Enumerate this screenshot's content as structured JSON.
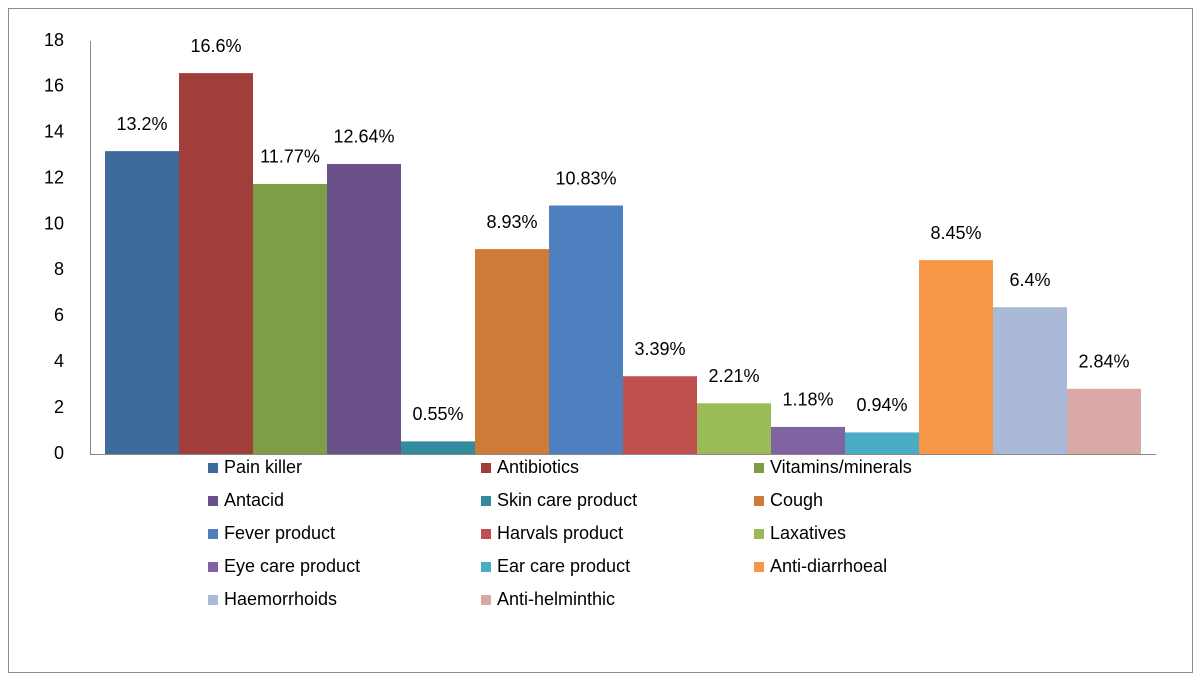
{
  "chart_data": {
    "type": "bar",
    "categories": [
      null
    ],
    "ylim": [
      0,
      18
    ],
    "yticks": [
      0,
      2,
      4,
      6,
      8,
      10,
      12,
      14,
      16,
      18
    ],
    "grid": false,
    "series": [
      {
        "name": "Pain killer",
        "color": "#3e6a9c",
        "values": [
          13.2
        ],
        "value_labels": [
          "13.2%"
        ]
      },
      {
        "name": "Antibiotics",
        "color": "#a03e3b",
        "values": [
          16.6
        ],
        "value_labels": [
          "16.6%"
        ]
      },
      {
        "name": "Vitamins/minerals",
        "color": "#7f9c47",
        "values": [
          11.77
        ],
        "value_labels": [
          "11.77%"
        ]
      },
      {
        "name": "Antacid",
        "color": "#6a5189",
        "values": [
          12.64
        ],
        "value_labels": [
          "12.64%"
        ]
      },
      {
        "name": "Skin care product",
        "color": "#348a9e",
        "values": [
          0.55
        ],
        "value_labels": [
          "0.55%"
        ]
      },
      {
        "name": "Cough",
        "color": "#cf7b37",
        "values": [
          8.93
        ],
        "value_labels": [
          "8.93%"
        ]
      },
      {
        "name": "Fever product",
        "color": "#4e80bf",
        "values": [
          10.83
        ],
        "value_labels": [
          "10.83%"
        ]
      },
      {
        "name": "Harvals product",
        "color": "#c0504d",
        "values": [
          3.39
        ],
        "value_labels": [
          "3.39%"
        ]
      },
      {
        "name": "Laxatives",
        "color": "#9bbb59",
        "values": [
          2.21
        ],
        "value_labels": [
          "2.21%"
        ]
      },
      {
        "name": "Eye care product",
        "color": "#8064a2",
        "values": [
          1.18
        ],
        "value_labels": [
          "1.18%"
        ]
      },
      {
        "name": "Ear care product",
        "color": "#4bacc6",
        "values": [
          0.94
        ],
        "value_labels": [
          "0.94%"
        ]
      },
      {
        "name": "Anti-diarrhoeal",
        "color": "#f79646",
        "values": [
          8.45
        ],
        "value_labels": [
          "8.45%"
        ]
      },
      {
        "name": "Haemorrhoids",
        "color": "#aab9d8",
        "values": [
          6.4
        ],
        "value_labels": [
          "6.4%"
        ]
      },
      {
        "name": "Anti-helminthic",
        "color": "#d9a8a7",
        "values": [
          2.84
        ],
        "value_labels": [
          "2.84%"
        ]
      }
    ]
  }
}
